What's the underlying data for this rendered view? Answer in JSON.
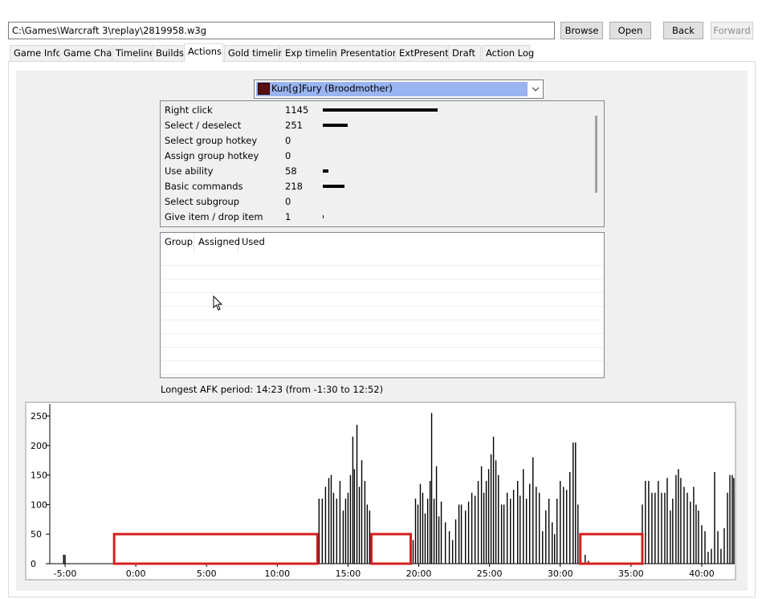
{
  "path": "C:\\Games\\Warcraft 3\\replay\\2819958.w3g",
  "buttons": [
    "Browse",
    "Open",
    "Back",
    "Forward"
  ],
  "tabs": [
    "Game Info",
    "Game Chat",
    "Timeline",
    "Builds",
    "Actions",
    "Gold timeline",
    "Exp timeline",
    "Presentation",
    "ExtPresent",
    "Draft",
    "Action Log"
  ],
  "active_tab": 4,
  "player": "Kun[g]Fury (Broodmother)",
  "actions": [
    {
      "name": "Right click",
      "count": 1145
    },
    {
      "name": "Select / deselect",
      "count": 251
    },
    {
      "name": "Select group hotkey",
      "count": 0
    },
    {
      "name": "Assign group hotkey",
      "count": 0
    },
    {
      "name": "Use ability",
      "count": 58
    },
    {
      "name": "Basic commands",
      "count": 218
    },
    {
      "name": "Select subgroup",
      "count": 0
    },
    {
      "name": "Give item / drop item",
      "count": 1
    }
  ],
  "group_table": {
    "headers": [
      "Group",
      "Assigned",
      "Used"
    ]
  },
  "afk_text": "Longest AFK period: 14:23 (from -1:30 to 12:52)",
  "chart_data": {
    "type": "bar",
    "color": "#000000",
    "x": [
      -5.1,
      -5.0,
      12.95,
      13.18,
      13.41,
      13.64,
      13.81,
      13.98,
      14.2,
      14.43,
      14.66,
      14.83,
      15.0,
      15.17,
      15.34,
      15.45,
      15.63,
      15.8,
      15.97,
      16.19,
      16.36,
      16.53,
      19.6,
      19.77,
      19.94,
      20.11,
      20.28,
      20.45,
      20.63,
      20.8,
      20.91,
      21.08,
      21.25,
      21.42,
      21.59,
      21.88,
      22.16,
      22.39,
      22.61,
      22.84,
      23.01,
      23.3,
      23.52,
      23.75,
      23.98,
      24.2,
      24.43,
      24.6,
      24.77,
      24.94,
      25.11,
      25.28,
      25.45,
      25.63,
      25.85,
      26.02,
      26.25,
      26.48,
      26.7,
      26.99,
      27.16,
      27.39,
      27.61,
      27.84,
      28.07,
      28.3,
      28.52,
      28.75,
      28.98,
      29.2,
      29.43,
      29.6,
      29.77,
      30.0,
      30.23,
      30.45,
      30.68,
      30.91,
      31.08,
      31.25,
      31.76,
      31.99,
      35.8,
      36.02,
      36.25,
      36.48,
      36.7,
      36.93,
      37.16,
      37.39,
      37.56,
      37.78,
      37.95,
      38.18,
      38.35,
      38.52,
      38.75,
      38.98,
      39.2,
      39.43,
      39.6,
      39.77,
      40.0,
      40.23,
      40.45,
      40.68,
      40.91,
      41.14,
      41.36,
      41.59,
      41.82,
      41.99,
      42.16,
      42.27
    ],
    "values": [
      15,
      15,
      110,
      110,
      130,
      145,
      150,
      120,
      110,
      140,
      90,
      110,
      120,
      150,
      215,
      160,
      235,
      130,
      175,
      140,
      100,
      90,
      40,
      110,
      100,
      135,
      120,
      85,
      110,
      140,
      255,
      110,
      165,
      80,
      105,
      70,
      55,
      40,
      75,
      100,
      100,
      90,
      105,
      120,
      115,
      140,
      165,
      120,
      140,
      160,
      185,
      215,
      175,
      150,
      100,
      100,
      120,
      110,
      125,
      140,
      115,
      160,
      110,
      135,
      180,
      130,
      120,
      55,
      90,
      110,
      70,
      50,
      110,
      140,
      130,
      125,
      155,
      205,
      205,
      100,
      15,
      5,
      100,
      140,
      140,
      120,
      120,
      140,
      120,
      120,
      145,
      90,
      110,
      150,
      160,
      145,
      130,
      120,
      105,
      130,
      100,
      90,
      65,
      55,
      20,
      25,
      155,
      55,
      25,
      60,
      120,
      150,
      150,
      145
    ],
    "highlights": [
      {
        "start": -1.53,
        "end": 12.84,
        "height": 50
      },
      {
        "start": 16.65,
        "end": 19.43,
        "height": 50
      },
      {
        "start": 31.42,
        "end": 35.8,
        "height": 50
      }
    ],
    "highlight_color": "#d42020",
    "xlim": [
      -6.08,
      42.33
    ],
    "ylim": [
      0,
      270
    ],
    "yticks": [
      0,
      50,
      100,
      150,
      200,
      250
    ],
    "xticks": [
      {
        "value": -5,
        "label": "-5:00"
      },
      {
        "value": 0,
        "label": "0:00"
      },
      {
        "value": 5,
        "label": "5:00"
      },
      {
        "value": 10,
        "label": "10:00"
      },
      {
        "value": 15,
        "label": "15:00"
      },
      {
        "value": 20,
        "label": "20:00"
      },
      {
        "value": 25,
        "label": "25:00"
      },
      {
        "value": 30,
        "label": "30:00"
      },
      {
        "value": 35,
        "label": "35:00"
      },
      {
        "value": 40,
        "label": "40:00"
      }
    ]
  }
}
